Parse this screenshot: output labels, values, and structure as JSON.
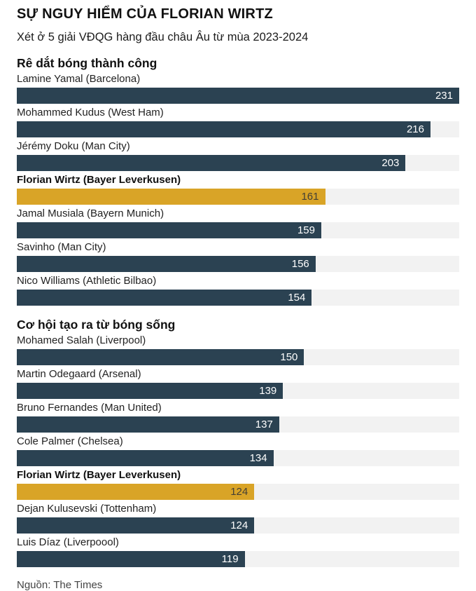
{
  "page": {
    "title": "SỰ NGUY HIỂM CỦA FLORIAN WIRTZ",
    "subtitle": "Xét ở 5 giải VĐQG hàng đầu châu Âu từ mùa 2023-2024",
    "source": "Nguồn: The Times"
  },
  "colors": {
    "bar": "#2b4252",
    "highlight": "#d9a427",
    "track": "#f2f2f2",
    "value_on_bar": "#ffffff",
    "value_on_highlight": "#433f35"
  },
  "chart_data": [
    {
      "type": "bar",
      "orientation": "horizontal",
      "title": "Rê dắt bóng thành công",
      "xlim": [
        0,
        231
      ],
      "grid": false,
      "legend": false,
      "value_labels": "inside-right",
      "categories": [
        "Lamine Yamal (Barcelona)",
        "Mohammed Kudus (West Ham)",
        "Jérémy Doku (Man City)",
        "Florian Wirtz (Bayer Leverkusen)",
        "Jamal Musiala (Bayern Munich)",
        "Savinho (Man City)",
        "Nico Williams (Athletic Bilbao)"
      ],
      "values": [
        231,
        216,
        203,
        161,
        159,
        156,
        154
      ],
      "highlight_index": 3,
      "highlight_category": "Florian Wirtz (Bayer Leverkusen)"
    },
    {
      "type": "bar",
      "orientation": "horizontal",
      "title": "Cơ hội tạo ra từ bóng sống",
      "xlim": [
        0,
        231
      ],
      "grid": false,
      "legend": false,
      "value_labels": "inside-right",
      "categories": [
        "Mohamed Salah (Liverpool)",
        "Martin Odegaard (Arsenal)",
        "Bruno Fernandes (Man United)",
        "Cole Palmer (Chelsea)",
        "Florian Wirtz (Bayer Leverkusen)",
        "Dejan Kulusevski (Tottenham)",
        "Luis Díaz (Liverpoool)"
      ],
      "values": [
        150,
        139,
        137,
        134,
        124,
        124,
        119
      ],
      "highlight_index": 4,
      "highlight_category": "Florian Wirtz (Bayer Leverkusen)"
    }
  ]
}
